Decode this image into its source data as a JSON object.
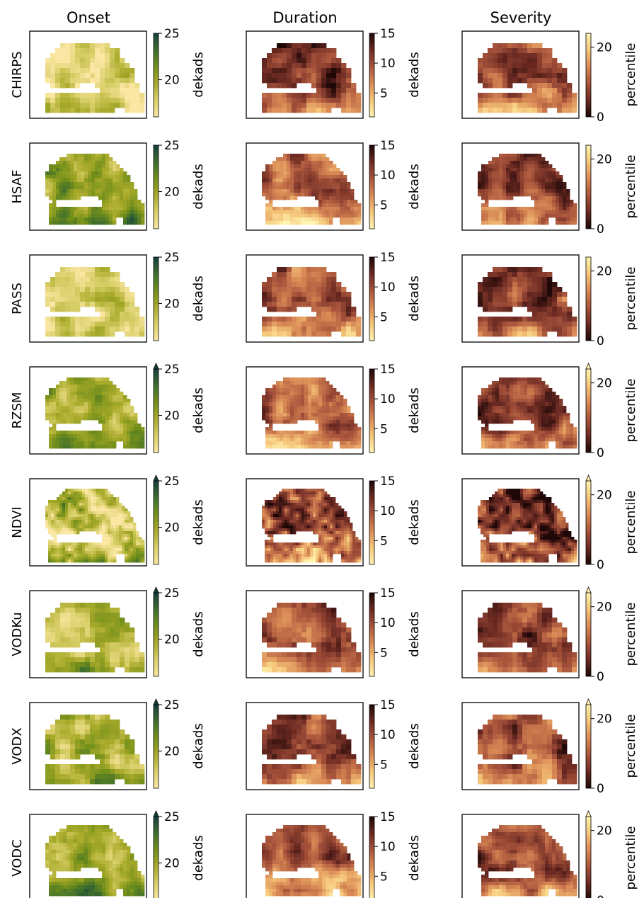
{
  "figure": {
    "columns": [
      "Onset",
      "Duration",
      "Severity"
    ],
    "rows": [
      "CHIRPS",
      "HSAF",
      "PASS",
      "RZSM",
      "NDVI",
      "VODKu",
      "VODX",
      "VODC"
    ]
  },
  "colorbars": {
    "onset": {
      "label": "dekads",
      "ticks": [
        "25",
        "20"
      ],
      "tick_values": [
        25,
        20
      ],
      "range": [
        16,
        25
      ]
    },
    "duration": {
      "label": "dekads",
      "ticks": [
        "15",
        "10",
        "5"
      ],
      "tick_values": [
        15,
        10,
        5
      ],
      "range": [
        1,
        15
      ]
    },
    "severity": {
      "label": "percentile",
      "ticks": [
        "20",
        "0"
      ],
      "tick_values": [
        20,
        0
      ],
      "range": [
        0,
        24
      ]
    }
  },
  "colors": {
    "onset_cmap": [
      "#fbe7a3",
      "#d9cf6a",
      "#a8aa2a",
      "#74901b",
      "#3f6f2c",
      "#143f3f"
    ],
    "duration_cmap": [
      "#fff4b0",
      "#f5c67a",
      "#d98a55",
      "#a8543c",
      "#6b2a22",
      "#1e0707"
    ],
    "severity_cmap": [
      "#1e0707",
      "#6b2a22",
      "#a8543c",
      "#d98a55",
      "#f5c67a",
      "#fff4b0"
    ]
  },
  "chart_data": [
    {
      "type": "heatmap",
      "row": "CHIRPS",
      "variable": "Onset",
      "unit": "dekads",
      "typical_value": 17.5,
      "colorbar_extend": "none"
    },
    {
      "type": "heatmap",
      "row": "CHIRPS",
      "variable": "Duration",
      "unit": "dekads",
      "typical_value": 12,
      "colorbar_extend": "none"
    },
    {
      "type": "heatmap",
      "row": "CHIRPS",
      "variable": "Severity",
      "unit": "percentile",
      "typical_value": 10,
      "colorbar_extend": "none"
    },
    {
      "type": "heatmap",
      "row": "HSAF",
      "variable": "Onset",
      "unit": "dekads",
      "typical_value": 20,
      "colorbar_extend": "none"
    },
    {
      "type": "heatmap",
      "row": "HSAF",
      "variable": "Duration",
      "unit": "dekads",
      "typical_value": 9,
      "colorbar_extend": "none"
    },
    {
      "type": "heatmap",
      "row": "HSAF",
      "variable": "Severity",
      "unit": "percentile",
      "typical_value": 7,
      "colorbar_extend": "none"
    },
    {
      "type": "heatmap",
      "row": "PASS",
      "variable": "Onset",
      "unit": "dekads",
      "typical_value": 17.5,
      "colorbar_extend": "none"
    },
    {
      "type": "heatmap",
      "row": "PASS",
      "variable": "Duration",
      "unit": "dekads",
      "typical_value": 9,
      "colorbar_extend": "none"
    },
    {
      "type": "heatmap",
      "row": "PASS",
      "variable": "Severity",
      "unit": "percentile",
      "typical_value": 7,
      "colorbar_extend": "none"
    },
    {
      "type": "heatmap",
      "row": "RZSM",
      "variable": "Onset",
      "unit": "dekads",
      "typical_value": 20,
      "colorbar_extend": "max"
    },
    {
      "type": "heatmap",
      "row": "RZSM",
      "variable": "Duration",
      "unit": "dekads",
      "typical_value": 9,
      "colorbar_extend": "none"
    },
    {
      "type": "heatmap",
      "row": "RZSM",
      "variable": "Severity",
      "unit": "percentile",
      "typical_value": 7,
      "colorbar_extend": "max"
    },
    {
      "type": "heatmap",
      "row": "NDVI",
      "variable": "Onset",
      "unit": "dekads",
      "typical_value": 18,
      "colorbar_extend": "max"
    },
    {
      "type": "heatmap",
      "row": "NDVI",
      "variable": "Duration",
      "unit": "dekads",
      "typical_value": 10,
      "colorbar_extend": "none"
    },
    {
      "type": "heatmap",
      "row": "NDVI",
      "variable": "Severity",
      "unit": "percentile",
      "typical_value": 6,
      "colorbar_extend": "max"
    },
    {
      "type": "heatmap",
      "row": "VODKu",
      "variable": "Onset",
      "unit": "dekads",
      "typical_value": 19,
      "colorbar_extend": "max"
    },
    {
      "type": "heatmap",
      "row": "VODKu",
      "variable": "Duration",
      "unit": "dekads",
      "typical_value": 10,
      "colorbar_extend": "none"
    },
    {
      "type": "heatmap",
      "row": "VODKu",
      "variable": "Severity",
      "unit": "percentile",
      "typical_value": 8,
      "colorbar_extend": "max"
    },
    {
      "type": "heatmap",
      "row": "VODX",
      "variable": "Onset",
      "unit": "dekads",
      "typical_value": 19,
      "colorbar_extend": "max"
    },
    {
      "type": "heatmap",
      "row": "VODX",
      "variable": "Duration",
      "unit": "dekads",
      "typical_value": 10,
      "colorbar_extend": "none"
    },
    {
      "type": "heatmap",
      "row": "VODX",
      "variable": "Severity",
      "unit": "percentile",
      "typical_value": 8,
      "colorbar_extend": "max"
    },
    {
      "type": "heatmap",
      "row": "VODC",
      "variable": "Onset",
      "unit": "dekads",
      "typical_value": 20,
      "colorbar_extend": "max"
    },
    {
      "type": "heatmap",
      "row": "VODC",
      "variable": "Duration",
      "unit": "dekads",
      "typical_value": 9,
      "colorbar_extend": "none"
    },
    {
      "type": "heatmap",
      "row": "VODC",
      "variable": "Severity",
      "unit": "percentile",
      "typical_value": 9,
      "colorbar_extend": "max"
    }
  ]
}
